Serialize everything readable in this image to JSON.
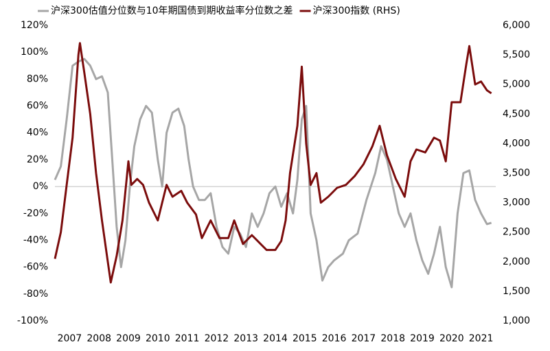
{
  "chart_data": {
    "type": "line",
    "legend_position": "top",
    "xlim": [
      2007,
      2022
    ],
    "xticks": [
      {
        "value": 2007.5,
        "label": "2007"
      },
      {
        "value": 2008.5,
        "label": "2008"
      },
      {
        "value": 2009.5,
        "label": "2009"
      },
      {
        "value": 2010.5,
        "label": "2010"
      },
      {
        "value": 2011.5,
        "label": "2011"
      },
      {
        "value": 2012.5,
        "label": "2012"
      },
      {
        "value": 2013.5,
        "label": "2013"
      },
      {
        "value": 2014.5,
        "label": "2014"
      },
      {
        "value": 2015.5,
        "label": "2015"
      },
      {
        "value": 2016.5,
        "label": "2016"
      },
      {
        "value": 2017.5,
        "label": "2017"
      },
      {
        "value": 2018.5,
        "label": "2018"
      },
      {
        "value": 2019.5,
        "label": "2019"
      },
      {
        "value": 2020.5,
        "label": "2020"
      },
      {
        "value": 2021.5,
        "label": "2021"
      }
    ],
    "ylim": [
      -100,
      120
    ],
    "yticks": [
      {
        "value": -100,
        "label": "-100%"
      },
      {
        "value": -80,
        "label": "-80%"
      },
      {
        "value": -60,
        "label": "-60%"
      },
      {
        "value": -40,
        "label": "-40%"
      },
      {
        "value": -20,
        "label": "-20%"
      },
      {
        "value": 0,
        "label": "0%"
      },
      {
        "value": 20,
        "label": "20%"
      },
      {
        "value": 40,
        "label": "40%"
      },
      {
        "value": 60,
        "label": "60%"
      },
      {
        "value": 80,
        "label": "80%"
      },
      {
        "value": 100,
        "label": "100%"
      },
      {
        "value": 120,
        "label": "120%"
      }
    ],
    "y2lim": [
      1000,
      6000
    ],
    "y2ticks": [
      {
        "value": 1000,
        "label": "1,000"
      },
      {
        "value": 1500,
        "label": "1,500"
      },
      {
        "value": 2000,
        "label": "2,000"
      },
      {
        "value": 2500,
        "label": "2,500"
      },
      {
        "value": 3000,
        "label": "3,000"
      },
      {
        "value": 3500,
        "label": "3,500"
      },
      {
        "value": 4000,
        "label": "4,000"
      },
      {
        "value": 4500,
        "label": "4,500"
      },
      {
        "value": 5000,
        "label": "5,000"
      },
      {
        "value": 5500,
        "label": "5,500"
      },
      {
        "value": 6000,
        "label": "6,000"
      }
    ],
    "series": [
      {
        "name": "沪深300估值分位数与10年期国债到期收益率分位数之差",
        "color": "#a6a6a6",
        "x": [
          2007.0,
          2007.2,
          2007.4,
          2007.6,
          2007.8,
          2008.0,
          2008.2,
          2008.4,
          2008.6,
          2008.8,
          2008.95,
          2009.1,
          2009.25,
          2009.4,
          2009.55,
          2009.7,
          2009.9,
          2010.1,
          2010.3,
          2010.5,
          2010.65,
          2010.8,
          2011.0,
          2011.2,
          2011.4,
          2011.55,
          2011.7,
          2011.9,
          2012.1,
          2012.3,
          2012.5,
          2012.7,
          2012.9,
          2013.1,
          2013.3,
          2013.5,
          2013.7,
          2013.9,
          2014.1,
          2014.3,
          2014.5,
          2014.7,
          2014.9,
          2015.1,
          2015.25,
          2015.4,
          2015.55,
          2015.7,
          2015.9,
          2016.1,
          2016.3,
          2016.5,
          2016.8,
          2017.0,
          2017.3,
          2017.6,
          2017.9,
          2018.1,
          2018.3,
          2018.5,
          2018.7,
          2018.9,
          2019.1,
          2019.3,
          2019.5,
          2019.7,
          2019.9,
          2020.1,
          2020.3,
          2020.5,
          2020.7,
          2020.9,
          2021.1,
          2021.3,
          2021.5,
          2021.7,
          2021.85
        ],
        "values": [
          5,
          15,
          50,
          90,
          93,
          95,
          90,
          80,
          82,
          70,
          20,
          -30,
          -60,
          -40,
          0,
          30,
          50,
          60,
          55,
          20,
          0,
          40,
          55,
          58,
          45,
          20,
          0,
          -10,
          -10,
          -5,
          -30,
          -45,
          -50,
          -30,
          -35,
          -45,
          -20,
          -30,
          -20,
          -5,
          0,
          -15,
          -5,
          -20,
          5,
          50,
          60,
          -20,
          -40,
          -70,
          -60,
          -55,
          -50,
          -40,
          -35,
          -10,
          10,
          30,
          20,
          0,
          -20,
          -30,
          -20,
          -40,
          -55,
          -65,
          -50,
          -30,
          -60,
          -75,
          -20,
          10,
          12,
          -10,
          -20,
          -28,
          -27
        ]
      },
      {
        "name": "沪深300指数 (RHS)",
        "color": "#7b0c0c",
        "axis": "y2",
        "x": [
          2007.0,
          2007.2,
          2007.4,
          2007.6,
          2007.8,
          2007.85,
          2008.0,
          2008.2,
          2008.4,
          2008.6,
          2008.8,
          2008.9,
          2009.1,
          2009.3,
          2009.5,
          2009.6,
          2009.8,
          2010.0,
          2010.2,
          2010.5,
          2010.8,
          2011.0,
          2011.3,
          2011.5,
          2011.8,
          2012.0,
          2012.3,
          2012.6,
          2012.9,
          2013.1,
          2013.4,
          2013.7,
          2013.9,
          2014.2,
          2014.5,
          2014.7,
          2014.85,
          2015.0,
          2015.25,
          2015.4,
          2015.55,
          2015.7,
          2015.9,
          2016.05,
          2016.3,
          2016.6,
          2016.9,
          2017.2,
          2017.5,
          2017.8,
          2018.05,
          2018.3,
          2018.6,
          2018.9,
          2019.1,
          2019.3,
          2019.6,
          2019.9,
          2020.1,
          2020.3,
          2020.5,
          2020.8,
          2021.0,
          2021.1,
          2021.3,
          2021.5,
          2021.7,
          2021.85
        ],
        "values": [
          2050,
          2500,
          3300,
          4100,
          5500,
          5700,
          5200,
          4500,
          3500,
          2700,
          2000,
          1650,
          2100,
          2700,
          3700,
          3300,
          3400,
          3300,
          3000,
          2700,
          3300,
          3100,
          3200,
          3000,
          2800,
          2400,
          2700,
          2400,
          2400,
          2700,
          2300,
          2450,
          2350,
          2200,
          2200,
          2350,
          2700,
          3500,
          4300,
          5300,
          4000,
          3300,
          3500,
          3000,
          3100,
          3250,
          3300,
          3450,
          3650,
          3950,
          4300,
          3800,
          3400,
          3100,
          3700,
          3900,
          3850,
          4100,
          4050,
          3700,
          4700,
          4700,
          5350,
          5650,
          5000,
          5050,
          4900,
          4850
        ]
      }
    ]
  }
}
